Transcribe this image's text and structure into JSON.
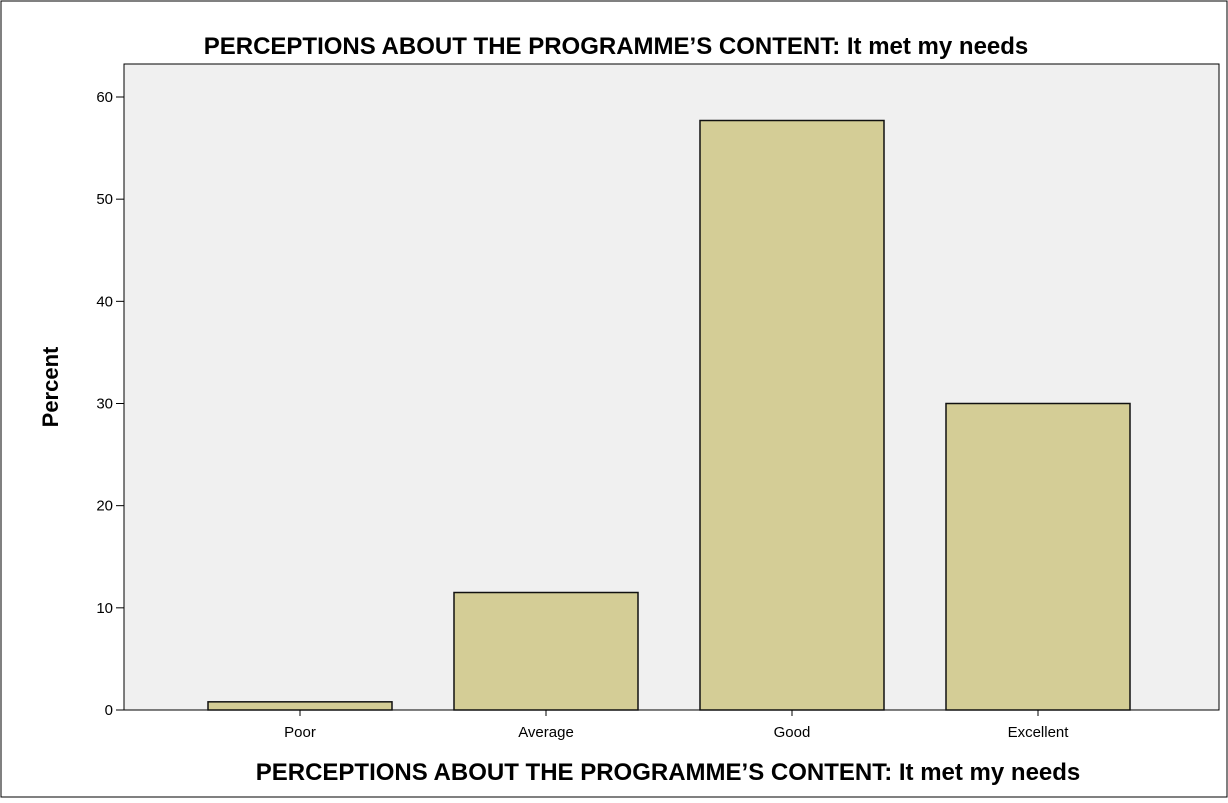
{
  "chart_data": {
    "type": "bar",
    "title": "PERCEPTIONS ABOUT THE PROGRAMME’S CONTENT: It met my needs",
    "xlabel": "PERCEPTIONS ABOUT THE PROGRAMME’S CONTENT: It met my needs",
    "ylabel": "Percent",
    "categories": [
      "Poor",
      "Average",
      "Good",
      "Excellent"
    ],
    "values": [
      0.8,
      11.5,
      57.7,
      30.0
    ],
    "ylim": [
      0,
      60
    ],
    "yticks": [
      "0",
      "10",
      "20",
      "30",
      "40",
      "50",
      "60"
    ],
    "grid": false,
    "legend": "none"
  },
  "colors": {
    "bar_fill": "#d4cd96",
    "bar_stroke": "#111111",
    "plot_background": "#f0f0f0",
    "page_background": "#ffffff"
  }
}
